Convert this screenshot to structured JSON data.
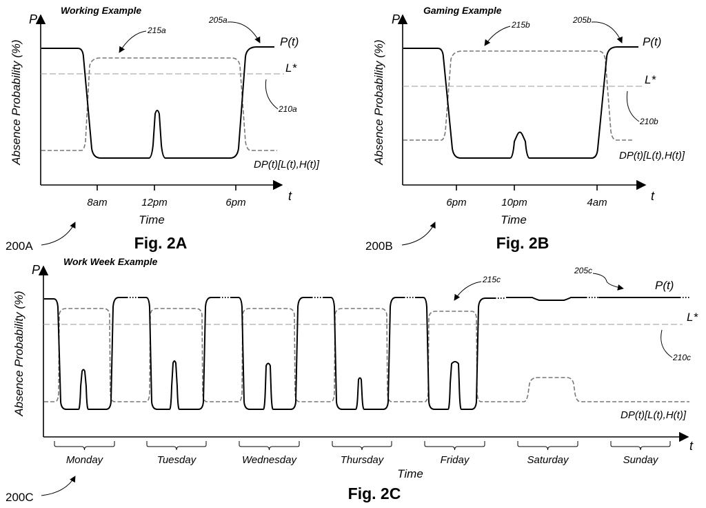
{
  "panels": {
    "a": {
      "title": "Working Example",
      "p_axis": "P",
      "t_axis": "t",
      "ylabel": "Absence Probability (%)",
      "xlabel": "Time",
      "ticks": [
        "8am",
        "12pm",
        "6pm"
      ],
      "curve_p": "P(t)",
      "curve_l": "L*",
      "curve_dp": "DP(t)[L(t),H(t)]",
      "ref_p": "205a",
      "ref_dp": "215a",
      "ref_l": "210a",
      "fig_ref": "200A",
      "caption": "Fig. 2A"
    },
    "b": {
      "title": "Gaming Example",
      "p_axis": "P",
      "t_axis": "t",
      "ylabel": "Absence Probability (%)",
      "xlabel": "Time",
      "ticks": [
        "6pm",
        "10pm",
        "4am"
      ],
      "curve_p": "P(t)",
      "curve_l": "L*",
      "curve_dp": "DP(t)[L(t),H(t)]",
      "ref_p": "205b",
      "ref_dp": "215b",
      "ref_l": "210b",
      "fig_ref": "200B",
      "caption": "Fig. 2B"
    },
    "c": {
      "title": "Work Week Example",
      "p_axis": "P",
      "t_axis": "t",
      "ylabel": "Absence Probability (%)",
      "xlabel": "Time",
      "days": [
        "Monday",
        "Tuesday",
        "Wednesday",
        "Thursday",
        "Friday",
        "Saturday",
        "Sunday"
      ],
      "curve_p": "P(t)",
      "curve_l": "L*",
      "curve_dp": "DP(t)[L(t),H(t)]",
      "ref_p": "205c",
      "ref_dp": "215c",
      "ref_l": "210c",
      "fig_ref": "200C",
      "caption": "Fig. 2C"
    }
  }
}
